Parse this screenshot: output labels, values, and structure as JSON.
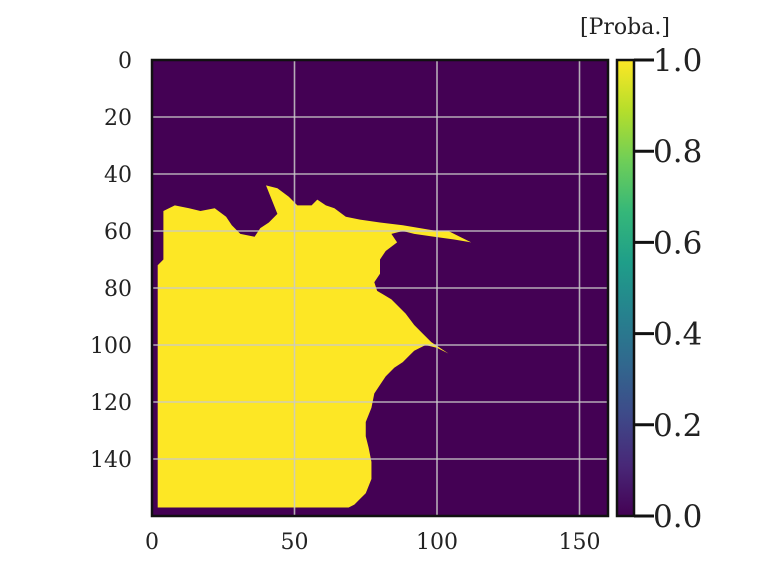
{
  "chart_data": {
    "type": "heatmap",
    "title": "",
    "xlabel": "",
    "ylabel": "",
    "xlim": [
      0,
      160
    ],
    "ylim": [
      160,
      0
    ],
    "xticks": [
      "0",
      "50",
      "100",
      "150"
    ],
    "yticks": [
      "0",
      "20",
      "40",
      "60",
      "80",
      "100",
      "120",
      "140"
    ],
    "grid": true,
    "colormap": "viridis",
    "colorbar": {
      "title": "[Proba.]",
      "range": [
        0.0,
        1.0
      ],
      "ticks": [
        "0.0",
        "0.2",
        "0.4",
        "0.6",
        "0.8",
        "1.0"
      ]
    },
    "colors": {
      "low": "#440154",
      "high": "#fde725"
    },
    "region_value": 1.0,
    "background_value": 0.0,
    "region_boundary": [
      [
        2,
        157
      ],
      [
        2,
        72
      ],
      [
        4,
        70
      ],
      [
        4,
        53
      ],
      [
        8,
        51
      ],
      [
        13,
        52
      ],
      [
        17,
        53
      ],
      [
        22,
        52
      ],
      [
        26,
        55
      ],
      [
        28,
        58
      ],
      [
        31,
        61
      ],
      [
        36,
        62
      ],
      [
        38,
        59
      ],
      [
        41,
        57
      ],
      [
        44,
        54
      ],
      [
        40,
        44
      ],
      [
        44,
        45
      ],
      [
        48,
        48
      ],
      [
        51,
        51
      ],
      [
        56,
        51
      ],
      [
        58,
        49
      ],
      [
        61,
        51
      ],
      [
        64,
        52
      ],
      [
        68,
        55
      ],
      [
        73,
        56
      ],
      [
        80,
        57
      ],
      [
        88,
        58
      ],
      [
        94,
        59
      ],
      [
        100,
        60
      ],
      [
        104,
        60
      ],
      [
        108,
        62
      ],
      [
        112,
        64
      ],
      [
        106,
        63
      ],
      [
        99,
        62
      ],
      [
        92,
        61
      ],
      [
        88,
        60
      ],
      [
        84,
        61
      ],
      [
        86,
        64
      ],
      [
        82,
        67
      ],
      [
        80,
        70
      ],
      [
        80,
        75
      ],
      [
        78,
        78
      ],
      [
        79,
        81
      ],
      [
        84,
        84
      ],
      [
        89,
        89
      ],
      [
        92,
        93
      ],
      [
        95,
        96
      ],
      [
        98,
        99
      ],
      [
        104,
        103
      ],
      [
        100,
        101
      ],
      [
        96,
        100
      ],
      [
        92,
        102
      ],
      [
        90,
        104
      ],
      [
        88,
        106
      ],
      [
        85,
        108
      ],
      [
        82,
        111
      ],
      [
        80,
        114
      ],
      [
        78,
        117
      ],
      [
        77,
        122
      ],
      [
        75,
        127
      ],
      [
        75,
        132
      ],
      [
        76,
        136
      ],
      [
        77,
        141
      ],
      [
        77,
        147
      ],
      [
        75,
        152
      ],
      [
        73,
        154
      ],
      [
        71,
        156
      ],
      [
        69,
        157
      ]
    ]
  }
}
